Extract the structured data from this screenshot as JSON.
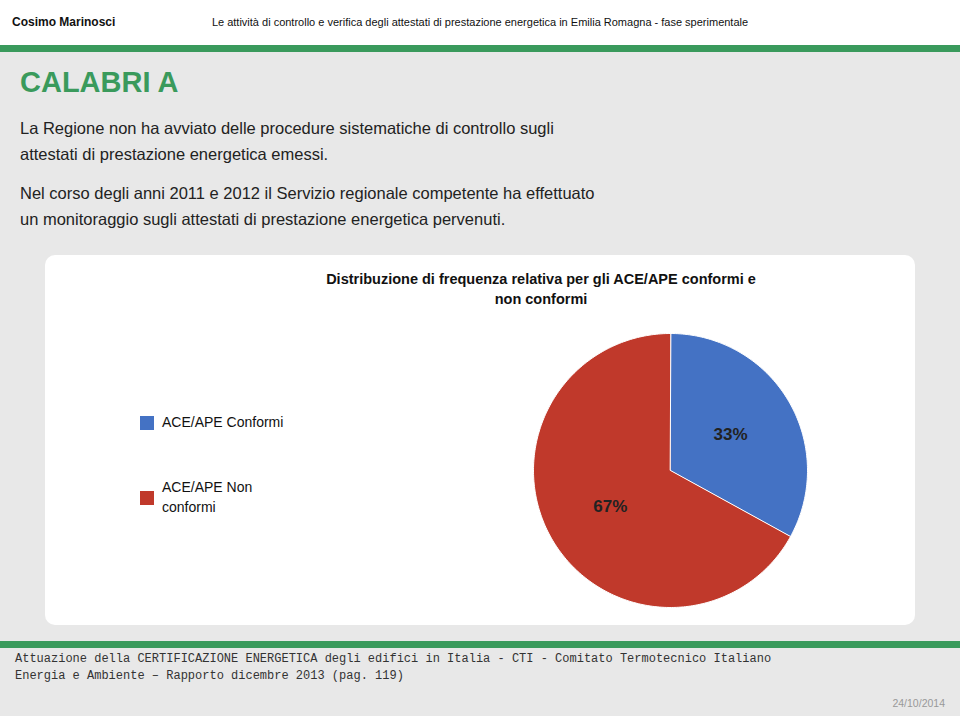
{
  "chart_data": {
    "type": "pie",
    "title": "Distribuzione di frequenza relativa per gli ACE/APE conformi e\nnon conformi",
    "categories": [
      "ACE/APE Conformi",
      "ACE/APE Non\nconformi"
    ],
    "values": [
      33,
      67
    ],
    "value_labels": [
      "33%",
      "67%"
    ],
    "colors": [
      "#4472c4",
      "#c0392b"
    ],
    "data_labels": true,
    "legend": "left",
    "annotations": [
      "Cosimo Marinosci",
      "Le attività di controllo e verifica degli attestati di prestazione energetica in Emilia Romagna - fase sperimentale",
      "CALABRI A",
      "La Regione non ha avviato delle procedure sistematiche di controllo sugli\nattestati di prestazione energetica emessi.",
      "Nel corso degli anni 2011 e 2012 il Servizio regionale competente ha effettuato\nun monitoraggio sugli attestati di prestazione energetica pervenuti.",
      "Attuazione della CERTIFICAZIONE ENERGETICA degli edifici in Italia - CTI - Comitato Termotecnico Italiano",
      "Energia e Ambiente – Rapporto dicembre 2013 (pag. 119)",
      "24/10/2014"
    ]
  }
}
